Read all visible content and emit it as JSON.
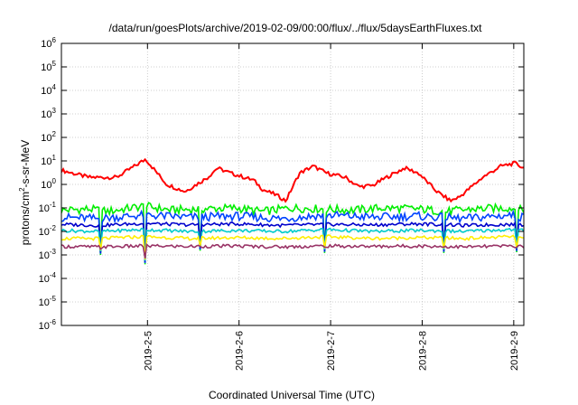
{
  "chart_data": {
    "type": "line",
    "title": "/data/run/goesPlots/archive/2019-02-09/00:00/flux/../flux/5daysEarthFluxes.txt",
    "xlabel": "Coordinated Universal Time (UTC)",
    "ylabel_parts": {
      "prefix": "protons/cm",
      "sup": "2",
      "suffix": "-s-sr-MeV"
    },
    "yscale": "log",
    "ylim_exp": [
      -6,
      6
    ],
    "ytick_exps": [
      -6,
      -5,
      -4,
      -3,
      -2,
      -1,
      0,
      1,
      2,
      3,
      4,
      5,
      6
    ],
    "ytick_base": "10",
    "xlim_days": [
      4.0,
      9.05
    ],
    "xticks": [
      {
        "day": 4.94,
        "label": "2019-2-5"
      },
      {
        "day": 5.94,
        "label": "2019-2-6"
      },
      {
        "day": 6.94,
        "label": "2019-2-7"
      },
      {
        "day": 7.94,
        "label": "2019-2-8"
      },
      {
        "day": 8.94,
        "label": "2019-2-9"
      }
    ],
    "grid": true,
    "series": [
      {
        "color": "#ff0000",
        "x": [
          4.0,
          4.3,
          4.6,
          4.8,
          4.92,
          5.0,
          5.15,
          5.35,
          5.6,
          5.7,
          5.85,
          6.1,
          6.2,
          6.35,
          6.45,
          6.6,
          6.75,
          6.9,
          7.1,
          7.25,
          7.4,
          7.55,
          7.75,
          7.9,
          8.1,
          8.25,
          8.35,
          8.6,
          8.8,
          8.95,
          9.05
        ],
        "y": [
          4,
          2,
          2,
          6,
          12,
          5,
          1,
          0.5,
          2,
          5,
          3,
          1.5,
          0.6,
          0.35,
          0.2,
          3,
          6,
          3,
          2,
          0.8,
          0.9,
          2,
          5,
          3,
          0.5,
          0.2,
          0.3,
          2,
          6,
          8,
          5
        ]
      },
      {
        "color": "#00ee00",
        "x": [
          4.0,
          4.3,
          4.5,
          4.9,
          5.2,
          5.5,
          5.9,
          6.2,
          6.5,
          6.9,
          7.2,
          7.5,
          7.9,
          8.2,
          8.5,
          8.9,
          9.05
        ],
        "y": [
          0.08,
          0.09,
          0.07,
          0.12,
          0.08,
          0.09,
          0.1,
          0.07,
          0.1,
          0.09,
          0.08,
          0.1,
          0.09,
          0.07,
          0.09,
          0.1,
          0.08
        ]
      },
      {
        "color": "#0044ff",
        "x": [
          4.0,
          4.4,
          4.9,
          5.4,
          5.9,
          6.4,
          6.9,
          7.4,
          7.9,
          8.4,
          8.9,
          9.05
        ],
        "y": [
          0.04,
          0.035,
          0.05,
          0.04,
          0.045,
          0.035,
          0.05,
          0.04,
          0.045,
          0.035,
          0.05,
          0.04
        ]
      },
      {
        "color": "#0000cc",
        "x": [
          4.0,
          4.4,
          4.9,
          5.4,
          5.9,
          6.4,
          6.9,
          7.4,
          7.9,
          8.4,
          8.9,
          9.05
        ],
        "y": [
          0.02,
          0.018,
          0.022,
          0.019,
          0.021,
          0.018,
          0.02,
          0.019,
          0.021,
          0.018,
          0.02,
          0.019
        ]
      },
      {
        "color": "#00cccc",
        "x": [
          4.0,
          4.4,
          4.9,
          5.4,
          5.9,
          6.4,
          6.9,
          7.4,
          7.9,
          8.4,
          8.9,
          9.05
        ],
        "y": [
          0.011,
          0.01,
          0.012,
          0.01,
          0.011,
          0.01,
          0.012,
          0.01,
          0.011,
          0.01,
          0.012,
          0.011
        ]
      },
      {
        "color": "#ffee00",
        "x": [
          4.0,
          4.4,
          4.9,
          5.4,
          5.9,
          6.4,
          6.9,
          7.4,
          7.9,
          8.4,
          8.9,
          9.05
        ],
        "y": [
          0.005,
          0.005,
          0.006,
          0.005,
          0.0055,
          0.005,
          0.006,
          0.005,
          0.0055,
          0.005,
          0.006,
          0.005
        ]
      },
      {
        "color": "#993366",
        "x": [
          4.0,
          4.4,
          4.9,
          5.4,
          5.9,
          6.4,
          6.9,
          7.4,
          7.9,
          8.4,
          8.9,
          9.05
        ],
        "y": [
          0.0023,
          0.0022,
          0.0024,
          0.0023,
          0.0024,
          0.0022,
          0.0024,
          0.0023,
          0.0024,
          0.0022,
          0.0024,
          0.0023
        ]
      }
    ],
    "dips": [
      {
        "day": 4.42,
        "y": 0.001
      },
      {
        "day": 4.92,
        "y": 0.0004
      },
      {
        "day": 5.52,
        "y": 0.0015
      },
      {
        "day": 6.88,
        "y": 0.0012
      },
      {
        "day": 8.18,
        "y": 0.0012
      },
      {
        "day": 8.98,
        "y": 0.0013
      }
    ]
  }
}
